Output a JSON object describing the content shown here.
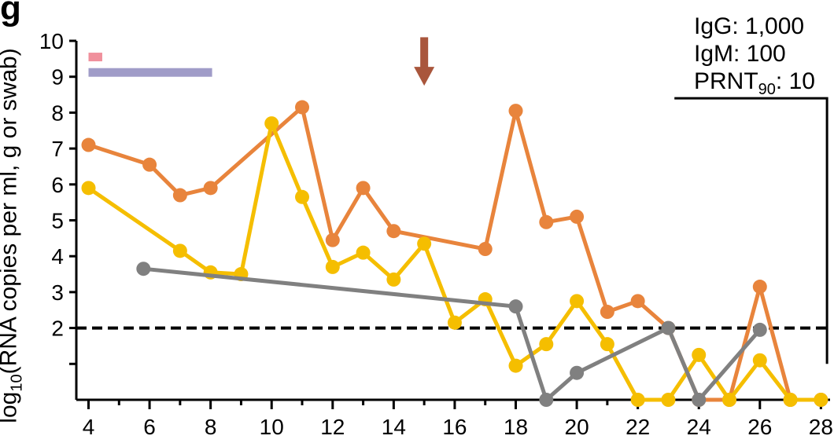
{
  "panel_label": "g",
  "annotations": {
    "igg": "IgG: 1,000",
    "igm": "IgM: 100",
    "prnt_prefix": "PRNT",
    "prnt_sub": "90",
    "prnt_value": ": 10"
  },
  "ylabel": {
    "prefix": "log",
    "sub": "10",
    "rest": "(RNA copies per ml, g or swab)"
  },
  "chart_data": {
    "type": "line",
    "xlim": [
      3.6,
      28.3
    ],
    "ylim": [
      0,
      10
    ],
    "xticks": [
      4,
      6,
      8,
      10,
      12,
      14,
      16,
      18,
      20,
      22,
      24,
      26,
      28
    ],
    "yticks": [
      2,
      3,
      4,
      5,
      6,
      7,
      8,
      9,
      10
    ],
    "ytick_marks": [
      1,
      2,
      3,
      4,
      5,
      6,
      7,
      8,
      9,
      10
    ],
    "threshold": 2,
    "series": [
      {
        "color": "#E8843C",
        "points": [
          [
            4,
            7.1
          ],
          [
            6,
            6.55
          ],
          [
            7,
            5.7
          ],
          [
            8,
            5.9
          ],
          [
            11,
            8.15
          ],
          [
            12,
            4.45
          ],
          [
            13,
            5.9
          ],
          [
            14,
            4.7
          ],
          [
            17,
            4.2
          ],
          [
            18,
            8.05
          ],
          [
            19,
            4.95
          ],
          [
            20,
            5.1
          ],
          [
            21,
            2.45
          ],
          [
            22,
            2.75
          ],
          [
            23,
            2.0
          ],
          [
            24,
            0
          ],
          [
            25,
            0
          ],
          [
            26,
            3.15
          ],
          [
            27,
            0
          ],
          [
            28,
            0
          ]
        ]
      },
      {
        "color": "#F5BE00",
        "points": [
          [
            4,
            5.9
          ],
          [
            7,
            4.15
          ],
          [
            8,
            3.55
          ],
          [
            9,
            3.5
          ],
          [
            10,
            7.7
          ],
          [
            11,
            5.65
          ],
          [
            12,
            3.7
          ],
          [
            13,
            4.1
          ],
          [
            14,
            3.35
          ],
          [
            15,
            4.35
          ],
          [
            16,
            2.15
          ],
          [
            17,
            2.8
          ],
          [
            18,
            0.95
          ],
          [
            19,
            1.55
          ],
          [
            20,
            2.75
          ],
          [
            21,
            1.55
          ],
          [
            22,
            0
          ],
          [
            23,
            0
          ],
          [
            24,
            1.25
          ],
          [
            25,
            0
          ],
          [
            26,
            1.1
          ],
          [
            27,
            0
          ],
          [
            28,
            0
          ]
        ]
      },
      {
        "color": "#808080",
        "points": [
          [
            5.8,
            3.65
          ],
          [
            18,
            2.6
          ],
          [
            19,
            0
          ],
          [
            20,
            0.75
          ],
          [
            23,
            2.0
          ],
          [
            24,
            0
          ],
          [
            26,
            1.95
          ]
        ]
      }
    ],
    "bars": [
      {
        "color": "#F0909C",
        "x": [
          4,
          4.45
        ],
        "y": 9.55
      },
      {
        "color": "#A09CC8",
        "x": [
          4,
          8.05
        ],
        "y": 9.12
      }
    ],
    "arrow": {
      "color": "#A9563C",
      "x": 15,
      "y_top": 10.1,
      "y_bottom": 8.75
    },
    "bracket": {
      "x_start": 23.2,
      "x_end": 28.2,
      "y_top": 8.4,
      "y_bottom": 1.0
    }
  }
}
